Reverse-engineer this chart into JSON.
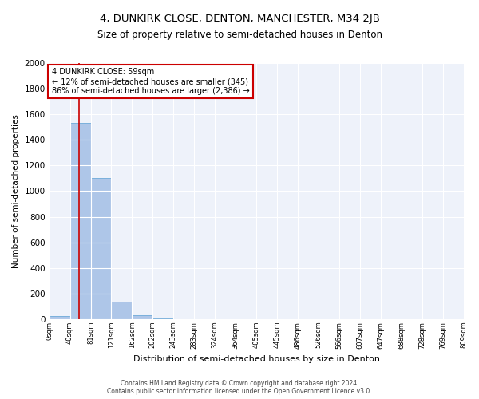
{
  "title": "4, DUNKIRK CLOSE, DENTON, MANCHESTER, M34 2JB",
  "subtitle": "Size of property relative to semi-detached houses in Denton",
  "xlabel": "Distribution of semi-detached houses by size in Denton",
  "ylabel": "Number of semi-detached properties",
  "bar_color": "#aec6e8",
  "bar_edge_color": "#5a9fd4",
  "property_size": 59,
  "bin_width": 40.5,
  "num_bins": 20,
  "bar_values": [
    25,
    1530,
    1100,
    135,
    30,
    5,
    2,
    1,
    1,
    0,
    0,
    0,
    0,
    0,
    0,
    0,
    0,
    0,
    0,
    0
  ],
  "ylim": [
    0,
    2000
  ],
  "yticks": [
    0,
    200,
    400,
    600,
    800,
    1000,
    1200,
    1400,
    1600,
    1800,
    2000
  ],
  "red_line_color": "#cc0000",
  "annotation_line1": "4 DUNKIRK CLOSE: 59sqm",
  "annotation_line2": "← 12% of semi-detached houses are smaller (345)",
  "annotation_line3": "86% of semi-detached houses are larger (2,386) →",
  "annotation_box_color": "#cc0000",
  "footer_line1": "Contains HM Land Registry data © Crown copyright and database right 2024.",
  "footer_line2": "Contains public sector information licensed under the Open Government Licence v3.0.",
  "background_color": "#eef2fa",
  "grid_color": "#ffffff",
  "tick_labels": [
    "0sqm",
    "40sqm",
    "81sqm",
    "121sqm",
    "162sqm",
    "202sqm",
    "243sqm",
    "283sqm",
    "324sqm",
    "364sqm",
    "405sqm",
    "445sqm",
    "486sqm",
    "526sqm",
    "566sqm",
    "607sqm",
    "647sqm",
    "688sqm",
    "728sqm",
    "769sqm",
    "809sqm"
  ]
}
